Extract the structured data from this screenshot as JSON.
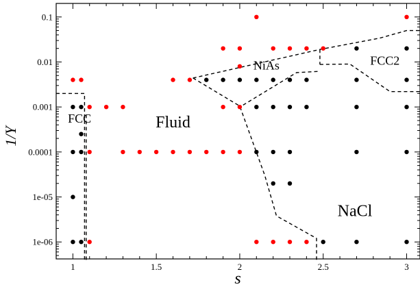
{
  "chart_data": {
    "type": "scatter",
    "xlabel": "s",
    "ylabel": "1/Y",
    "xlim": [
      0.9,
      3.08
    ],
    "ylim": [
      4.2e-07,
      0.2
    ],
    "yscale": "log",
    "grid": false,
    "x_ticks": [
      1,
      1.5,
      2,
      2.5,
      3
    ],
    "x_tick_labels": [
      "1",
      "1.5",
      "2",
      "2.5",
      "3"
    ],
    "y_ticks": [
      1e-06,
      1e-05,
      0.0001,
      0.001,
      0.01,
      0.1
    ],
    "y_tick_labels": [
      "1e-06",
      "1e-05",
      "0.0001",
      "0.001",
      "0.01",
      "0.1"
    ],
    "regions": [
      {
        "label": "FCC",
        "x": 1.04,
        "y": 0.00045,
        "size": "medium"
      },
      {
        "label": "Fluid",
        "x": 1.6,
        "y": 0.00035,
        "size": "large"
      },
      {
        "label": "NiAs",
        "x": 2.16,
        "y": 0.0068,
        "size": "medium"
      },
      {
        "label": "FCC2",
        "x": 2.87,
        "y": 0.0087,
        "size": "medium"
      },
      {
        "label": "NaCl",
        "x": 2.69,
        "y": 3.75e-06,
        "size": "large"
      }
    ],
    "series": [
      {
        "color": "#000000",
        "points": [
          [
            1,
            0.001
          ],
          [
            1.05,
            0.001
          ],
          [
            1.05,
            0.00025
          ],
          [
            1,
            0.0001
          ],
          [
            1.05,
            0.0001
          ],
          [
            1,
            1e-05
          ],
          [
            1,
            1e-06
          ],
          [
            1.05,
            1e-06
          ],
          [
            1.8,
            0.004
          ],
          [
            1.9,
            0.004
          ],
          [
            2,
            0.004
          ],
          [
            2.1,
            0.004
          ],
          [
            2.2,
            0.004
          ],
          [
            2.3,
            0.004
          ],
          [
            2.4,
            0.004
          ],
          [
            2.1,
            0.001
          ],
          [
            2.2,
            0.001
          ],
          [
            2.3,
            0.001
          ],
          [
            2.4,
            0.001
          ],
          [
            2.1,
            0.0001
          ],
          [
            2.2,
            0.0001
          ],
          [
            2.3,
            0.0001
          ],
          [
            2.2,
            2e-05
          ],
          [
            2.3,
            2e-05
          ],
          [
            2.5,
            1e-06
          ],
          [
            2.7,
            1e-06
          ],
          [
            3,
            1e-06
          ],
          [
            2.7,
            0.02
          ],
          [
            3,
            0.02
          ],
          [
            2.7,
            0.004
          ],
          [
            3,
            0.004
          ],
          [
            2.7,
            0.001
          ],
          [
            3,
            0.001
          ],
          [
            2.7,
            0.0001
          ],
          [
            3,
            0.0001
          ]
        ]
      },
      {
        "color": "#ff0000",
        "points": [
          [
            1,
            0.004
          ],
          [
            1.05,
            0.004
          ],
          [
            1.1,
            0.001
          ],
          [
            1.2,
            0.001
          ],
          [
            1.3,
            0.001
          ],
          [
            1.1,
            0.0001
          ],
          [
            1.3,
            0.0001
          ],
          [
            1.4,
            0.0001
          ],
          [
            1.5,
            0.0001
          ],
          [
            1.6,
            0.0001
          ],
          [
            1.7,
            0.0001
          ],
          [
            1.8,
            0.0001
          ],
          [
            1.9,
            0.0001
          ],
          [
            2,
            0.0001
          ],
          [
            1.1,
            1e-06
          ],
          [
            1.6,
            0.004
          ],
          [
            1.7,
            0.004
          ],
          [
            1.9,
            0.02
          ],
          [
            2,
            0.02
          ],
          [
            2.2,
            0.02
          ],
          [
            2.3,
            0.02
          ],
          [
            2.4,
            0.02
          ],
          [
            2.5,
            0.02
          ],
          [
            2,
            0.008
          ],
          [
            1.9,
            0.001
          ],
          [
            2,
            0.001
          ],
          [
            2.1,
            0.1
          ],
          [
            3,
            0.1
          ],
          [
            2.1,
            1e-06
          ],
          [
            2.2,
            1e-06
          ],
          [
            2.3,
            1e-06
          ],
          [
            2.4,
            1e-06
          ]
        ]
      }
    ],
    "boundaries": [
      [
        [
          0.9,
          0.002
        ],
        [
          1.07,
          0.002
        ],
        [
          1.07,
          4e-07
        ]
      ],
      [
        [
          1.08,
          4e-07
        ],
        [
          1.08,
          0.0007
        ]
      ],
      [
        [
          1.72,
          0.0044
        ],
        [
          2,
          0.00105
        ],
        [
          2.15,
          3e-05
        ],
        [
          2.22,
          3.8e-06
        ],
        [
          2.46,
          1.2e-06
        ],
        [
          2.46,
          4e-07
        ]
      ],
      [
        [
          1.72,
          0.0044
        ],
        [
          2.48,
          0.019
        ],
        [
          2.84,
          0.034
        ],
        [
          3,
          0.05
        ],
        [
          3.08,
          0.05
        ]
      ],
      [
        [
          2.48,
          0.019
        ],
        [
          2.48,
          0.0088
        ]
      ],
      [
        [
          2.48,
          0.0088
        ],
        [
          2.66,
          0.009
        ],
        [
          2.9,
          0.0022
        ],
        [
          3.08,
          0.0022
        ]
      ],
      [
        [
          2.02,
          0.0011
        ],
        [
          2.34,
          0.0058
        ],
        [
          2.48,
          0.0062
        ]
      ]
    ]
  }
}
